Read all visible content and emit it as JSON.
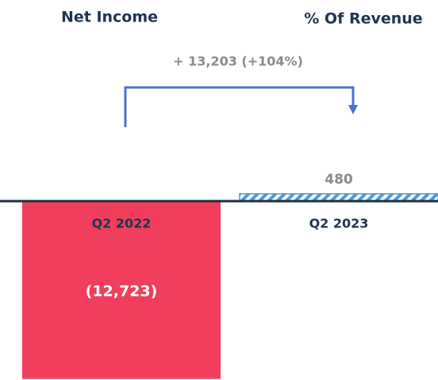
{
  "chart_data": {
    "type": "bar",
    "headers": [
      "Net Income",
      "% Of Revenue"
    ],
    "annotation": "+ 13,203 (+104%)",
    "categories": [
      "Q2 2022",
      "Q2 2023"
    ],
    "values": [
      -12723,
      480
    ],
    "value_labels": [
      "(12,723)",
      "480"
    ],
    "colors": [
      "#f03e5c",
      "#4a9bd8"
    ],
    "ylim": [
      -12800,
      14300
    ]
  }
}
